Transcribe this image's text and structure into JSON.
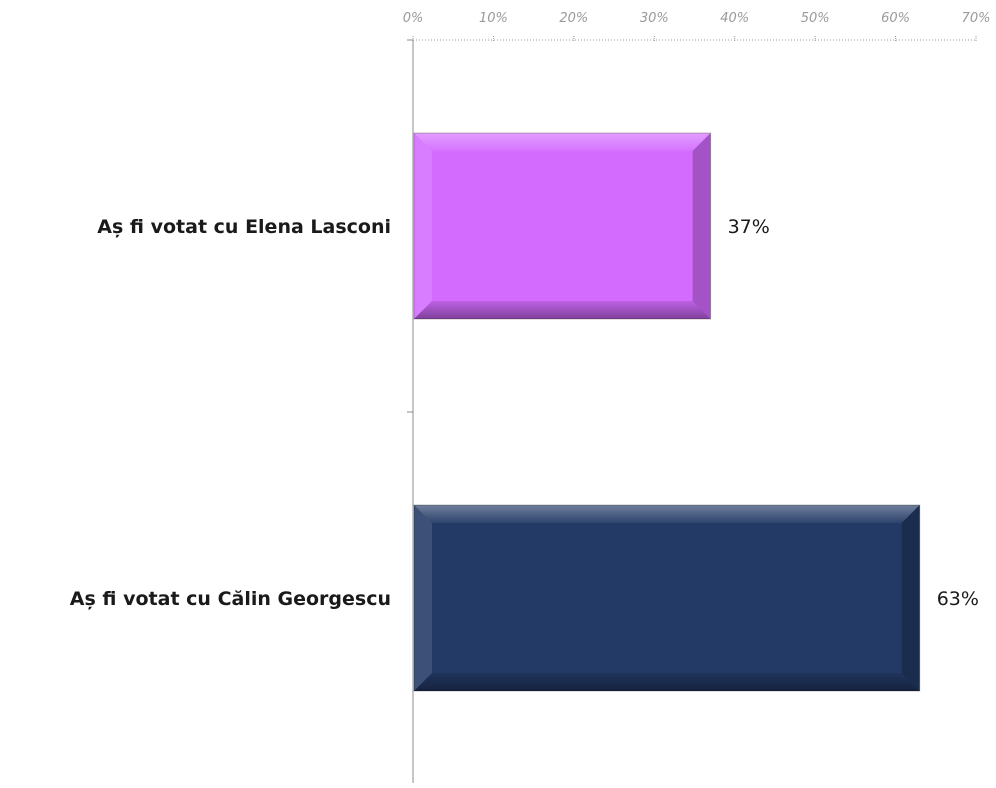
{
  "chart_data": {
    "type": "bar",
    "orientation": "horizontal",
    "categories": [
      "Aș fi votat cu Elena Lasconi",
      "Aș fi votat cu Călin Georgescu"
    ],
    "values": [
      37,
      63
    ],
    "value_labels": [
      "37%",
      "63%"
    ],
    "bar_colors": [
      "#d36bff",
      "#233a66"
    ],
    "xlim": [
      0,
      70
    ],
    "x_ticks": [
      0,
      10,
      20,
      30,
      40,
      50,
      60,
      70
    ],
    "x_tick_labels": [
      "0%",
      "10%",
      "20%",
      "30%",
      "40%",
      "50%",
      "60%",
      "70%"
    ],
    "x_axis_position": "top",
    "grid": false,
    "legend": "none"
  }
}
